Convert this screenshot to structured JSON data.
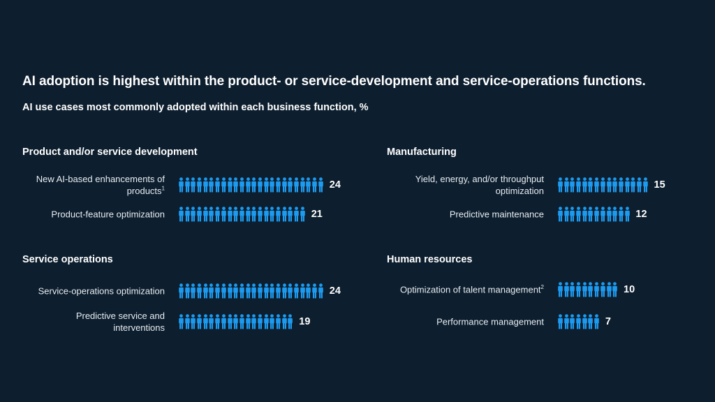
{
  "title": "AI adoption is highest within the product- or service-development and service-operations functions.",
  "subtitle": "AI use cases most commonly adopted within each business function, %",
  "colors": {
    "background": "#0d1e2e",
    "icon": "#1d9bf0",
    "text": "#ffffff"
  },
  "icon": "person-icon",
  "chart_data": [
    {
      "type": "bar",
      "title": "Product and/or service development",
      "categories": [
        "New AI-based enhancements of products",
        "Product-feature optimization"
      ],
      "footnotes": [
        "1",
        ""
      ],
      "values": [
        24,
        21
      ]
    },
    {
      "type": "bar",
      "title": "Manufacturing",
      "categories": [
        "Yield, energy, and/or throughput optimization",
        "Predictive maintenance"
      ],
      "footnotes": [
        "",
        ""
      ],
      "values": [
        15,
        12
      ]
    },
    {
      "type": "bar",
      "title": "Service operations",
      "categories": [
        "Service-operations optimization",
        "Predictive service and interventions"
      ],
      "footnotes": [
        "",
        ""
      ],
      "values": [
        24,
        19
      ]
    },
    {
      "type": "bar",
      "title": "Human resources",
      "categories": [
        "Optimization of talent management",
        "Performance management"
      ],
      "footnotes": [
        "2",
        ""
      ],
      "values": [
        10,
        7
      ]
    }
  ]
}
